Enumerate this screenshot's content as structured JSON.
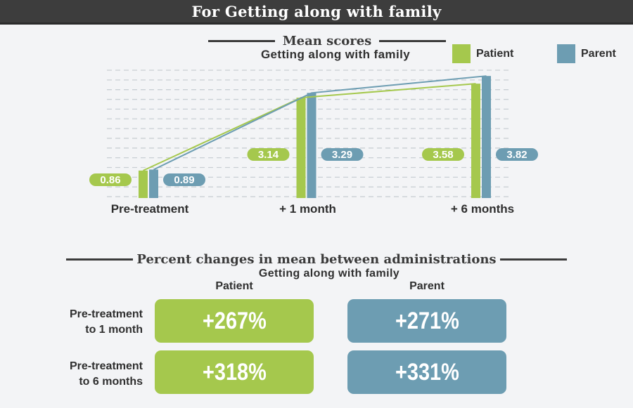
{
  "header": {
    "title": "For Getting along with family"
  },
  "colors": {
    "patient": "#a5c84d",
    "parent": "#6d9db2",
    "header_bg": "#3d3d3d",
    "page_bg": "#f3f4f6",
    "grid": "#c9cfd4",
    "title_text": "#3b3b3b",
    "value_text": "#ffffff"
  },
  "mean_scores": {
    "title": "Mean scores",
    "subtitle": "Getting along with family",
    "legend": [
      {
        "label": "Patient",
        "color": "#a5c84d"
      },
      {
        "label": "Parent",
        "color": "#6d9db2"
      }
    ]
  },
  "chart_data": {
    "type": "bar",
    "title": "Mean scores",
    "subtitle": "Getting along with family",
    "categories": [
      "Pre-treatment",
      "+ 1 month",
      "+ 6 months"
    ],
    "series": [
      {
        "name": "Patient",
        "color": "#a5c84d",
        "values": [
          0.86,
          3.14,
          3.58
        ],
        "labels": [
          "0.86",
          "3.14",
          "3.58"
        ]
      },
      {
        "name": "Parent",
        "color": "#6d9db2",
        "values": [
          0.89,
          3.29,
          3.82
        ],
        "labels": [
          "0.89",
          "3.29",
          "3.82"
        ]
      }
    ],
    "ylim": [
      0,
      4
    ],
    "grid": "dashed-horizontal",
    "legend_position": "top-right",
    "overlay": "trend lines connecting bar tops, value labels in rounded pills beside bars"
  },
  "percent_changes": {
    "title": "Percent changes in mean between administrations",
    "subtitle": "Getting along with family",
    "columns": [
      "Patient",
      "Parent"
    ],
    "rows": [
      {
        "label_line1": "Pre-treatment",
        "label_line2": "to 1 month",
        "patient": "+267%",
        "parent": "+271%"
      },
      {
        "label_line1": "Pre-treatment",
        "label_line2": "to 6 months",
        "patient": "+318%",
        "parent": "+331%"
      }
    ]
  }
}
